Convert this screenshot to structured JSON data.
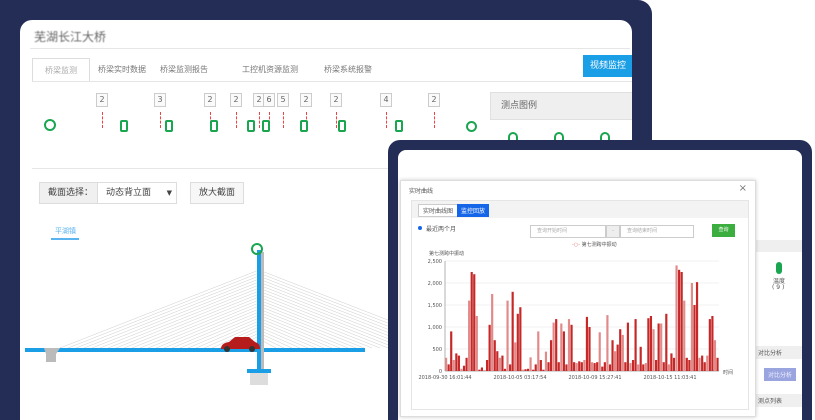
{
  "app": {
    "title": "芜湖长江大桥",
    "tabs": [
      "桥梁监测",
      "桥梁实时数据",
      "桥梁监测报告",
      "工控机资源监测",
      "桥梁系统报警"
    ],
    "video_button": "视频监控"
  },
  "monitor": {
    "markers": [
      "2",
      "3",
      "2",
      "2",
      "2",
      "6",
      "5",
      "2",
      "2",
      "4",
      "2"
    ],
    "legend_title": "测点图例"
  },
  "section": {
    "label": "截面选择：",
    "selected": "动态背立面",
    "zoom_button": "放大截面",
    "direction_label": "平湖镇"
  },
  "colors": {
    "accent": "#1a9ee6",
    "sensor": "#1aa650",
    "series": "#c62828",
    "frame": "#232d55"
  },
  "modal": {
    "title": "实时曲线",
    "close": "×",
    "tabs": [
      "实时曲线图",
      "监控回放"
    ],
    "radio_label": "最近两个月",
    "start_placeholder": "查询开始时间",
    "separator": "-",
    "end_placeholder": "查询结束时间",
    "query_button": "查询"
  },
  "side": {
    "temp_label": "温度",
    "temp_count": "( 9 )",
    "compare_header": "对比分析",
    "compare_button": "对比分析",
    "list_header": "测点列表"
  },
  "chart_data": {
    "type": "bar",
    "legend": "第七测跨中振动",
    "ylabel": "第七测跨中振动",
    "xlabel": "时间",
    "ylim": [
      0,
      2500
    ],
    "yticks": [
      "0",
      "500",
      "1,000",
      "1,500",
      "2,000",
      "2,500"
    ],
    "xticks": [
      "2018-09-30 16:01:44",
      "2018-10-05 03:17:54",
      "2018-10-09 15:27:41",
      "2018-10-15 11:03:41"
    ],
    "grid": true,
    "values": [
      300,
      150,
      900,
      250,
      400,
      350,
      50,
      120,
      300,
      1600,
      2250,
      2200,
      1250,
      30,
      80,
      20,
      250,
      1050,
      1750,
      700,
      450,
      300,
      350,
      50,
      1600,
      150,
      1800,
      650,
      1300,
      1450,
      30,
      40,
      50,
      310,
      30,
      150,
      900,
      250,
      30,
      440,
      200,
      700,
      1100,
      1180,
      200,
      1080,
      900,
      150,
      1180,
      1050,
      200,
      180,
      220,
      200,
      250,
      1230,
      1000,
      200,
      180,
      200,
      880,
      100,
      200,
      1270,
      150,
      700,
      450,
      600,
      950,
      820,
      200,
      1100,
      180,
      250,
      1180,
      150,
      550,
      150,
      180,
      1200,
      1250,
      950,
      250,
      1080,
      1080,
      200,
      1300,
      150,
      400,
      300,
      2400,
      2300,
      2250,
      1600,
      300,
      250,
      2000,
      1500,
      2020,
      300,
      350,
      200,
      350,
      1180,
      1250,
      700,
      300
    ]
  }
}
